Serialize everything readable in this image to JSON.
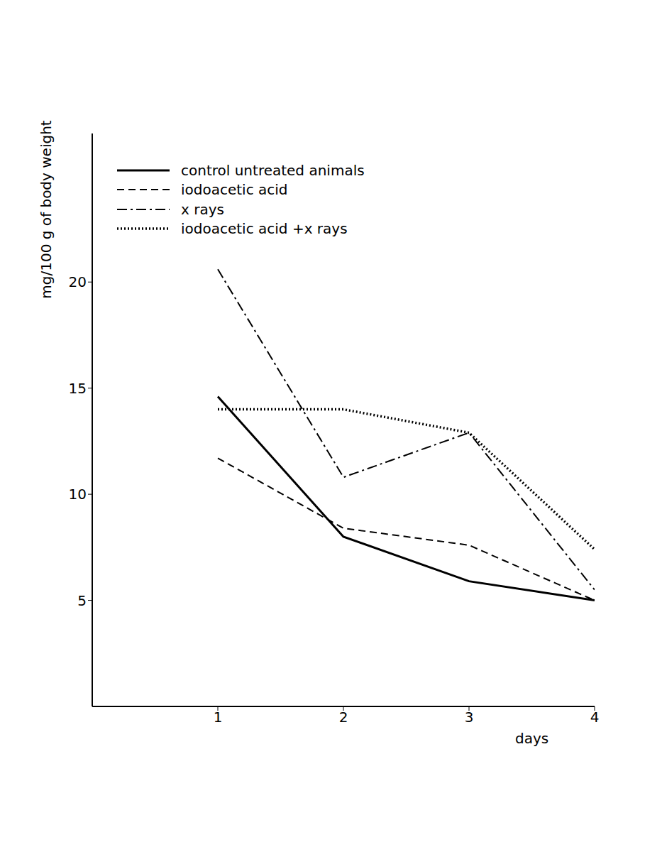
{
  "chart_data": {
    "type": "line",
    "x_label": "days",
    "y_label": "mg/100 g of body weight",
    "x": [
      1,
      2,
      3,
      4
    ],
    "xlim": [
      0,
      4
    ],
    "xticks": [
      1,
      2,
      3,
      4
    ],
    "ylim": [
      0,
      27
    ],
    "yticks": [
      5,
      10,
      15,
      20
    ],
    "grid": false,
    "legend": "upper left",
    "series": [
      {
        "name": "control untreated animals",
        "color": "#000000",
        "line_style": "solid",
        "values": [
          14.6,
          8.0,
          5.9,
          5.0
        ]
      },
      {
        "name": "iodoacetic acid",
        "color": "#000000",
        "line_style": "dashed",
        "values": [
          11.7,
          8.4,
          7.6,
          5.0
        ]
      },
      {
        "name": "x rays",
        "color": "#000000",
        "line_style": "dashdot",
        "values": [
          20.6,
          10.8,
          12.9,
          5.5
        ]
      },
      {
        "name": "iodoacetic acid +x rays",
        "color": "#000000",
        "line_style": "dotted",
        "values": [
          14.0,
          14.0,
          12.9,
          7.4
        ]
      }
    ]
  }
}
